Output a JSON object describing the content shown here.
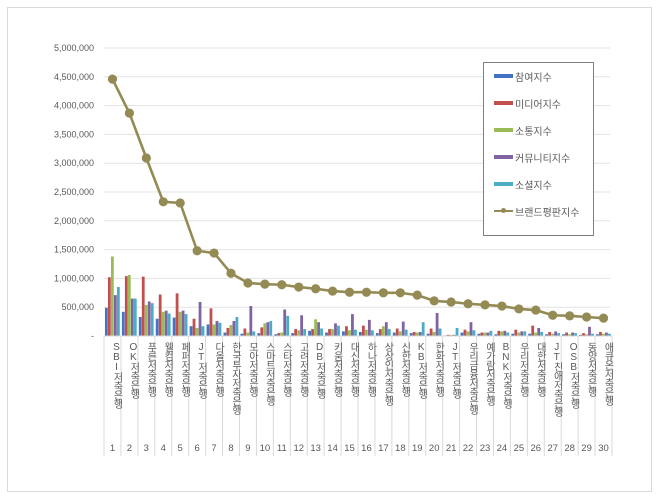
{
  "chart_data": {
    "type": "bar+line",
    "title": "",
    "xlabel": "",
    "ylabel": "",
    "ylim": [
      0,
      5000000
    ],
    "yticks": [
      "-",
      "500,000",
      "1,000,000",
      "1,500,000",
      "2,000,000",
      "2,500,000",
      "3,000,000",
      "3,500,000",
      "4,000,000",
      "4,500,000",
      "5,000,000"
    ],
    "grid": true,
    "legend_position": "right-inside",
    "rank_labels": [
      "1",
      "2",
      "3",
      "4",
      "5",
      "6",
      "7",
      "8",
      "9",
      "10",
      "11",
      "12",
      "13",
      "14",
      "15",
      "16",
      "17",
      "18",
      "19",
      "20",
      "21",
      "22",
      "23",
      "24",
      "25",
      "26",
      "27",
      "28",
      "29",
      "30"
    ],
    "categories": [
      "SBI저축은행",
      "OK저축은행",
      "푸른저축은행",
      "웰컴저축은행",
      "페퍼저축은행",
      "JT저축은행",
      "다올저축은행",
      "한국투자저축은행",
      "모아저축은행",
      "스마트저축은행",
      "스타저축은행",
      "고려저축은행",
      "DB저축은행",
      "키움저축은행",
      "대신저축은행",
      "하나저축은행",
      "상상인저축은행",
      "신한저축은행",
      "KB저축은행",
      "한화저축은행",
      "JT저축은행",
      "우리금융저축은행",
      "예가람저축은행",
      "BNK저축은행",
      "우리저축은행",
      "대한저축은행",
      "JT친애저축은행",
      "OSB저축은행",
      "동양저축은행",
      "애큐온저축은행"
    ],
    "series": [
      {
        "name": "참여지수",
        "type": "bar",
        "color": "#4472c4",
        "values": [
          490000,
          420000,
          330000,
          300000,
          320000,
          170000,
          200000,
          60000,
          40000,
          50000,
          30000,
          50000,
          90000,
          60000,
          80000,
          70000,
          50000,
          60000,
          50000,
          40000,
          10000,
          60000,
          40000,
          30000,
          40000,
          40000,
          30000,
          30000,
          20000,
          30000
        ]
      },
      {
        "name": "미디어지수",
        "type": "bar",
        "color": "#c0504d",
        "values": [
          1020000,
          1040000,
          1030000,
          720000,
          740000,
          300000,
          480000,
          140000,
          130000,
          150000,
          50000,
          120000,
          120000,
          120000,
          170000,
          180000,
          120000,
          130000,
          70000,
          130000,
          20000,
          110000,
          60000,
          90000,
          110000,
          180000,
          70000,
          60000,
          50000,
          70000
        ]
      },
      {
        "name": "소통지수",
        "type": "bar",
        "color": "#9bbb59",
        "values": [
          1380000,
          1060000,
          540000,
          420000,
          420000,
          140000,
          200000,
          190000,
          60000,
          220000,
          60000,
          100000,
          290000,
          120000,
          100000,
          110000,
          170000,
          80000,
          60000,
          70000,
          20000,
          80000,
          60000,
          80000,
          60000,
          60000,
          40000,
          30000,
          30000,
          40000
        ]
      },
      {
        "name": "커뮤니티지수",
        "type": "bar",
        "color": "#8064a2",
        "values": [
          710000,
          650000,
          600000,
          440000,
          440000,
          590000,
          260000,
          260000,
          520000,
          240000,
          460000,
          360000,
          240000,
          220000,
          380000,
          280000,
          240000,
          250000,
          70000,
          400000,
          20000,
          240000,
          60000,
          90000,
          80000,
          140000,
          80000,
          60000,
          160000,
          60000
        ]
      },
      {
        "name": "소셜지수",
        "type": "bar",
        "color": "#4bacc6",
        "values": [
          850000,
          650000,
          570000,
          390000,
          380000,
          170000,
          230000,
          330000,
          80000,
          260000,
          350000,
          120000,
          130000,
          180000,
          110000,
          100000,
          120000,
          110000,
          240000,
          130000,
          140000,
          100000,
          90000,
          60000,
          80000,
          70000,
          50000,
          50000,
          40000,
          40000
        ]
      },
      {
        "name": "브랜드평판지수",
        "type": "line",
        "color": "#948a54",
        "values": [
          4460000,
          3870000,
          3090000,
          2330000,
          2310000,
          1480000,
          1440000,
          1090000,
          920000,
          900000,
          890000,
          850000,
          820000,
          780000,
          760000,
          760000,
          750000,
          750000,
          710000,
          610000,
          590000,
          560000,
          540000,
          520000,
          470000,
          450000,
          360000,
          350000,
          330000,
          310000
        ]
      }
    ]
  },
  "legend": {
    "items": [
      {
        "label": "참여지수",
        "color": "#4472c4",
        "kind": "bar"
      },
      {
        "label": "미디어지수",
        "color": "#c0504d",
        "kind": "bar"
      },
      {
        "label": "소통지수",
        "color": "#9bbb59",
        "kind": "bar"
      },
      {
        "label": "커뮤니티지수",
        "color": "#8064a2",
        "kind": "bar"
      },
      {
        "label": "소셜지수",
        "color": "#4bacc6",
        "kind": "bar"
      },
      {
        "label": "브랜드평판지수",
        "color": "#948a54",
        "kind": "line"
      }
    ]
  }
}
